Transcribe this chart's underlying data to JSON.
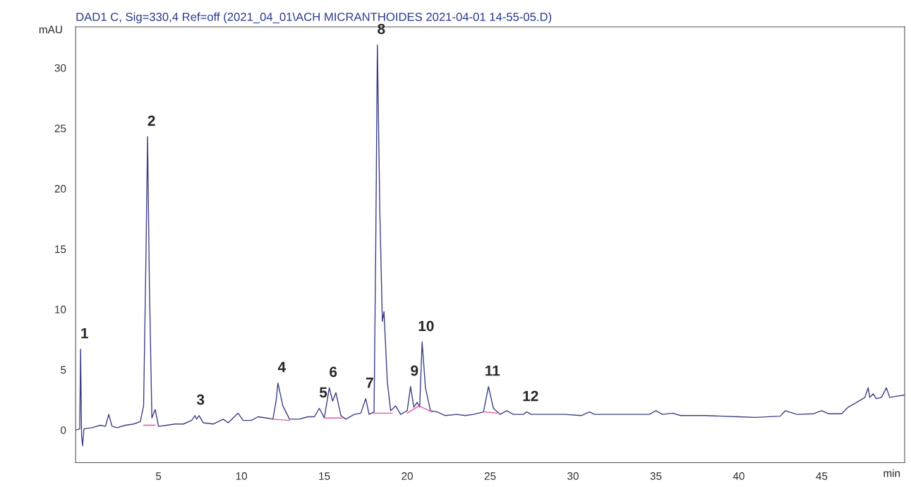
{
  "chart_data": {
    "type": "line",
    "title": "DAD1 C, Sig=330,4 Ref=off (2021_04_01\\ACH MICRANTHOIDES 2021-04-01 14-55-05.D)",
    "xlabel": "min",
    "ylabel": "mAU",
    "xlim": [
      0,
      50
    ],
    "ylim": [
      -2.7,
      33.4
    ],
    "xticks": [
      5,
      10,
      15,
      20,
      25,
      30,
      35,
      40,
      45
    ],
    "yticks": [
      0,
      5,
      10,
      15,
      20,
      25,
      30
    ],
    "grid": false,
    "legend": false,
    "series": [
      {
        "color": "#3a3f86",
        "x": [
          0,
          0.25,
          0.3,
          0.36,
          0.42,
          0.5,
          1,
          1.5,
          1.8,
          2,
          2.2,
          2.5,
          3,
          3.5,
          3.9,
          4.1,
          4.25,
          4.34,
          4.45,
          4.6,
          4.8,
          5,
          5.5,
          6,
          6.5,
          7,
          7.2,
          7.3,
          7.45,
          7.7,
          8.3,
          8.9,
          9.2,
          9.5,
          9.8,
          10.1,
          10.6,
          11,
          11.5,
          11.9,
          12.1,
          12.2,
          12.5,
          12.9,
          13.5,
          14,
          14.4,
          14.7,
          15,
          15.3,
          15.5,
          15.7,
          16,
          16.3,
          16.8,
          17.2,
          17.5,
          17.7,
          18,
          18.1,
          18.2,
          18.35,
          18.5,
          18.6,
          18.8,
          19,
          19.3,
          19.6,
          20,
          20.2,
          20.4,
          20.6,
          20.75,
          20.9,
          21.1,
          21.4,
          21.8,
          22.3,
          23,
          23.5,
          24,
          24.6,
          24.9,
          25.2,
          25.6,
          26,
          26.4,
          27,
          27.2,
          27.5,
          28.5,
          29.5,
          30.5,
          31,
          31.3,
          33,
          34.6,
          35,
          35.4,
          36,
          36.5,
          38,
          40,
          41,
          42.5,
          42.8,
          43.5,
          44.5,
          45,
          45.4,
          46.2,
          46.6,
          47,
          47.6,
          47.8,
          47.9,
          48.1,
          48.3,
          48.6,
          48.9,
          49.1,
          49.5,
          50
        ],
        "values": [
          0,
          0.1,
          6.7,
          -0.5,
          -1.3,
          0.1,
          0.2,
          0.4,
          0.3,
          1.3,
          0.3,
          0.2,
          0.4,
          0.5,
          0.7,
          2,
          15,
          24.3,
          12,
          1,
          1.7,
          0.3,
          0.4,
          0.5,
          0.5,
          0.8,
          1.2,
          0.9,
          1.2,
          0.6,
          0.5,
          0.9,
          0.6,
          1.0,
          1.4,
          0.8,
          0.8,
          1.1,
          1.0,
          0.9,
          2.5,
          3.9,
          2.0,
          0.9,
          0.9,
          1.1,
          1.1,
          1.8,
          1.0,
          3.5,
          2.4,
          3.1,
          1.2,
          0.9,
          1.3,
          1.4,
          2.6,
          1.3,
          1.5,
          15,
          31.9,
          18,
          9,
          9.8,
          4,
          1.6,
          2.0,
          1.3,
          1.6,
          3.6,
          1.9,
          2.3,
          1.9,
          7.3,
          3.5,
          1.6,
          1.5,
          1.2,
          1.3,
          1.2,
          1.3,
          1.5,
          3.6,
          1.8,
          1.3,
          1.6,
          1.3,
          1.3,
          1.5,
          1.3,
          1.3,
          1.3,
          1.2,
          1.5,
          1.3,
          1.3,
          1.3,
          1.6,
          1.3,
          1.4,
          1.2,
          1.2,
          1.1,
          1.05,
          1.15,
          1.6,
          1.3,
          1.35,
          1.6,
          1.35,
          1.35,
          1.9,
          2.2,
          2.7,
          3.5,
          2.7,
          3.0,
          2.6,
          2.7,
          3.5,
          2.7,
          2.8,
          2.9
        ]
      },
      {
        "color": "#e8559a",
        "x": [
          4.1,
          4.8,
          4.9,
          11.9,
          12.9,
          13,
          15,
          16.1,
          16.2,
          17.9,
          19.1,
          19.2,
          20,
          20.7,
          21.5,
          21.6,
          24.6,
          25.5
        ],
        "values": [
          0.4,
          0.4,
          null,
          0.9,
          0.8,
          null,
          1.0,
          1.0,
          null,
          1.4,
          1.4,
          null,
          1.4,
          2.0,
          1.5,
          null,
          1.5,
          1.4
        ]
      }
    ],
    "annotations": [
      {
        "text": "1",
        "x": 0.3,
        "y": 6.7
      },
      {
        "text": "2",
        "x": 4.34,
        "y": 24.3
      },
      {
        "text": "3",
        "x": 7.3,
        "y": 1.2
      },
      {
        "text": "4",
        "x": 12.2,
        "y": 3.9
      },
      {
        "text": "5",
        "x": 14.7,
        "y": 1.8
      },
      {
        "text": "6",
        "x": 15.3,
        "y": 3.5
      },
      {
        "text": "7",
        "x": 17.5,
        "y": 2.6
      },
      {
        "text": "8",
        "x": 18.2,
        "y": 31.9
      },
      {
        "text": "9",
        "x": 20.2,
        "y": 3.6
      },
      {
        "text": "10",
        "x": 20.9,
        "y": 7.3
      },
      {
        "text": "11",
        "x": 24.9,
        "y": 3.6
      },
      {
        "text": "12",
        "x": 27.2,
        "y": 1.5
      }
    ]
  }
}
